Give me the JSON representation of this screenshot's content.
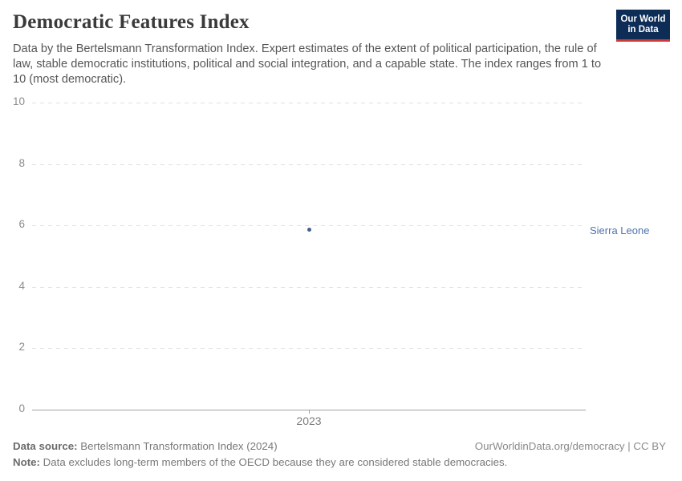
{
  "header": {
    "title": "Democratic Features Index",
    "subtitle": "Data by the Bertelsmann Transformation Index. Expert estimates of the extent of political participation, the rule of law, stable democratic institutions, political and social integration, and a capable state. The index ranges from 1 to 10 (most democratic).",
    "logo": {
      "line1": "Our World",
      "line2": "in Data",
      "bg_color": "#0d2d57",
      "accent_color": "#cd3a36"
    }
  },
  "chart_data": {
    "type": "scatter",
    "title": "Democratic Features Index",
    "xlabel": "",
    "ylabel": "",
    "ylim": [
      0,
      10
    ],
    "y_ticks": [
      0,
      2,
      4,
      6,
      8,
      10
    ],
    "x_ticks": [
      "2023"
    ],
    "grid": "horizontal-dashed",
    "legend_position": "right-entity-label",
    "series": [
      {
        "name": "Sierra Leone",
        "x": 2023,
        "y": 5.85,
        "color": "#44618f",
        "label_color": "#4e72ad"
      }
    ]
  },
  "footer": {
    "source_label": "Data source:",
    "source_text": " Bertelsmann Transformation Index (2024)",
    "attribution": "OurWorldinData.org/democracy | CC BY",
    "note_label": "Note:",
    "note_text": " Data excludes long-term members of the OECD because they are considered stable democracies."
  }
}
